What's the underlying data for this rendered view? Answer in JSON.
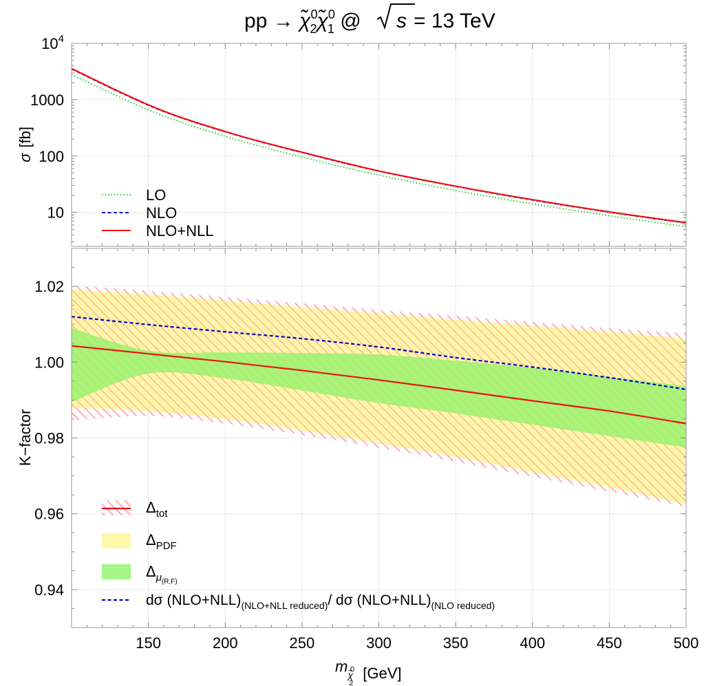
{
  "title": {
    "prefix": "pp → ",
    "chi": "χ̃",
    "sub2": "2",
    "sub1": "1",
    "sup0": "0",
    "at": " @ ",
    "sqrt_s": "s",
    "energy": " = 13 TeV"
  },
  "chart_data": [
    {
      "panel": "top",
      "type": "line",
      "ylabel_symbol": "σ",
      "ylabel_unit": "[fb]",
      "y_scale": "log",
      "ylim": [
        2.5,
        10000
      ],
      "xlim": [
        100,
        500
      ],
      "y_ticks": [
        {
          "value": 10000,
          "base": "10",
          "exp": "4"
        },
        {
          "value": 1000,
          "label": "1000"
        },
        {
          "value": 100,
          "label": "100"
        },
        {
          "value": 10,
          "label": "10"
        }
      ],
      "legend_position": "bottom-left",
      "series": [
        {
          "name": "LO",
          "style": "dotted",
          "color": "#22cc22",
          "x": [
            100,
            155,
            205,
            255,
            300,
            350,
            400,
            450,
            500
          ],
          "y": [
            2800,
            580,
            205,
            89,
            46,
            24.5,
            14.2,
            8.7,
            5.6
          ]
        },
        {
          "name": "NLO",
          "style": "dashed",
          "color": "#0000cc",
          "x": [
            100,
            155,
            205,
            255,
            300,
            350,
            400,
            450,
            500
          ],
          "y": [
            3500,
            700,
            246,
            107,
            54,
            29,
            16.6,
            10.1,
            6.5
          ]
        },
        {
          "name": "NLO+NLL",
          "style": "solid",
          "color": "#ee1111",
          "x": [
            100,
            155,
            205,
            255,
            300,
            350,
            400,
            450,
            500
          ],
          "y": [
            3550,
            710,
            248,
            108,
            54.5,
            29.2,
            16.8,
            10.2,
            6.55
          ]
        }
      ]
    },
    {
      "panel": "bottom",
      "type": "area",
      "ylabel": "K−factor",
      "xlabel_symbol": "m",
      "xlabel_unit": "[GeV]",
      "xlim": [
        100,
        500
      ],
      "ylim": [
        0.93,
        1.03
      ],
      "x_ticks": [
        150,
        200,
        250,
        300,
        350,
        400,
        450,
        500
      ],
      "y_ticks": [
        {
          "value": 1.02,
          "label": "1.02"
        },
        {
          "value": 1.0,
          "label": "1.00"
        },
        {
          "value": 0.98,
          "label": "0.98"
        },
        {
          "value": 0.96,
          "label": "0.96"
        },
        {
          "value": 0.94,
          "label": "0.94"
        }
      ],
      "legend_position": "bottom-left",
      "x": [
        100,
        150,
        200,
        250,
        300,
        350,
        400,
        450,
        500
      ],
      "bands": [
        {
          "name": "Δ_tot",
          "color": "#ff9aa8",
          "upper": [
            1.0202,
            1.0188,
            1.0172,
            1.0155,
            1.0138,
            1.0122,
            1.0106,
            1.009,
            1.0076
          ],
          "lower": [
            0.9846,
            0.9858,
            0.9838,
            0.9808,
            0.9774,
            0.9737,
            0.9698,
            0.9658,
            0.9618
          ]
        },
        {
          "name": "Δ_PDF",
          "color": "#ffee99",
          "upper": [
            1.0192,
            1.0178,
            1.0162,
            1.0145,
            1.0128,
            1.0112,
            1.0096,
            1.008,
            1.0062
          ],
          "lower": [
            0.988,
            0.987,
            0.985,
            0.982,
            0.9786,
            0.975,
            0.971,
            0.967,
            0.9625
          ]
        },
        {
          "name": "Δ_μ(R,F)",
          "color": "#88ee55",
          "upper": [
            1.009,
            1.003,
            1.0026,
            1.0024,
            1.002,
            1.0004,
            0.9985,
            0.9961,
            0.9937
          ],
          "lower": [
            0.9895,
            0.997,
            0.9957,
            0.9925,
            0.9892,
            0.9865,
            0.9835,
            0.9805,
            0.9775
          ]
        }
      ],
      "series": [
        {
          "name": "NLO+NLL",
          "style": "solid",
          "color": "#ee1111",
          "y": [
            1.0043,
            1.0022,
            1.0001,
            0.9978,
            0.9953,
            0.9926,
            0.9898,
            0.9871,
            0.9838
          ]
        },
        {
          "name": "dσ (NLO+NLL)(NLO+NLL reduced)/ dσ (NLO+NLL)(NLO reduced)",
          "style": "dashed",
          "color": "#0000cc",
          "y": [
            1.012,
            1.0099,
            1.008,
            1.0062,
            1.004,
            1.0012,
            0.9987,
            0.9959,
            0.9928
          ]
        }
      ]
    }
  ],
  "legend_top": [
    {
      "label": "LO",
      "color": "#22cc22",
      "style": "dotted"
    },
    {
      "label": "NLO",
      "color": "#0000cc",
      "style": "dashed"
    },
    {
      "label": "NLO+NLL",
      "color": "#ee1111",
      "style": "solid"
    }
  ],
  "legend_bottom": {
    "tot": {
      "base": "Δ",
      "sub": "tot"
    },
    "pdf": {
      "base": "Δ",
      "sub": "PDF"
    },
    "mu": {
      "base": "Δ",
      "sub": "μ",
      "subsub": "(R,F)"
    },
    "ratio": {
      "a": "dσ (NLO+NLL)",
      "a_sub": "(NLO+NLL reduced)",
      "b": "/ dσ (NLO+NLL)",
      "b_sub": "(NLO reduced)"
    }
  },
  "axis_symbols": {
    "sigma": "σ",
    "fb": "[fb]",
    "kfactor": "K−factor",
    "m": "m",
    "chi": "χ̃",
    "chi_sub": "2",
    "chi_sup": "0",
    "gev": "[GeV]"
  }
}
